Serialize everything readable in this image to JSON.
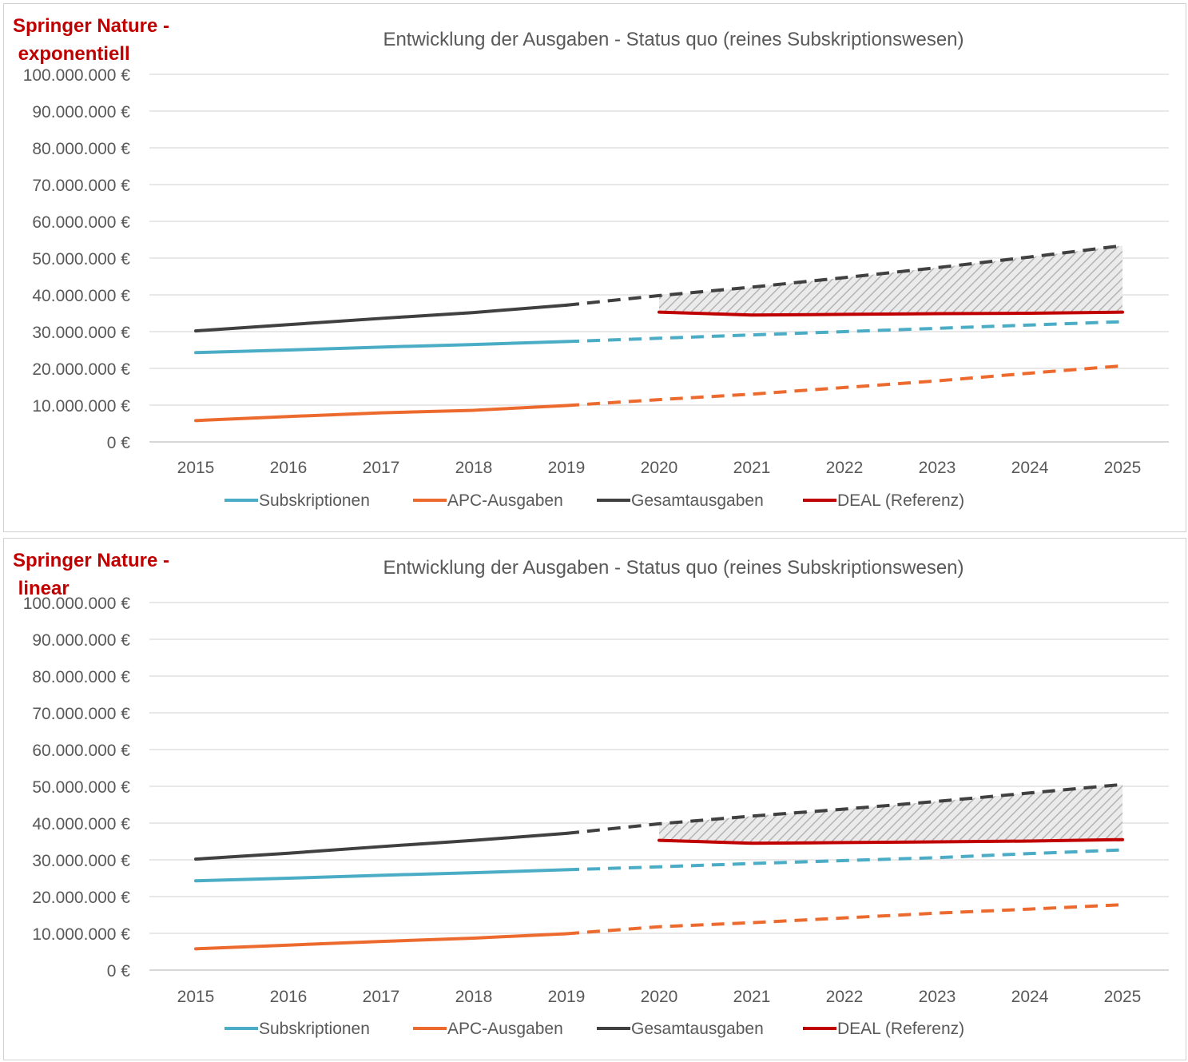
{
  "chart_data": [
    {
      "type": "line",
      "label": "Springer Nature -\n exponentiell",
      "title": "Entwicklung der Ausgaben - Status quo (reines Subskriptionswesen)",
      "categories": [
        "2015",
        "2016",
        "2017",
        "2018",
        "2019",
        "2020",
        "2021",
        "2022",
        "2023",
        "2024",
        "2025"
      ],
      "ylim": [
        0,
        100000000
      ],
      "yticks": [
        "0 €",
        "10.000.000 €",
        "20.000.000 €",
        "30.000.000 €",
        "40.000.000 €",
        "50.000.000 €",
        "60.000.000 €",
        "70.000.000 €",
        "80.000.000 €",
        "90.000.000 €",
        "100.000.000 €"
      ],
      "grid": true,
      "legend": "bottom",
      "projection_from": "2019",
      "series": [
        {
          "name": "Subskriptionen",
          "color": "#4bacc6",
          "values": [
            24300000,
            25000000,
            25800000,
            26500000,
            27300000,
            28200000,
            29100000,
            30000000,
            30900000,
            31800000,
            32700000
          ]
        },
        {
          "name": "APC-Ausgaben",
          "color": "#ed6a2f",
          "values": [
            5800000,
            6900000,
            7900000,
            8600000,
            9900000,
            11500000,
            13000000,
            14800000,
            16600000,
            18700000,
            20700000
          ]
        },
        {
          "name": "Gesamtausgaben",
          "color": "#404040",
          "values": [
            30200000,
            31900000,
            33600000,
            35200000,
            37200000,
            39800000,
            42100000,
            44700000,
            47400000,
            50300000,
            53400000
          ]
        },
        {
          "name": "DEAL (Referenz)",
          "color": "#c00000",
          "values": [
            null,
            null,
            null,
            null,
            null,
            35300000,
            34500000,
            34700000,
            34900000,
            35000000,
            35300000
          ]
        }
      ],
      "shaded_gap": {
        "between": [
          "Gesamtausgaben",
          "DEAL (Referenz)"
        ],
        "from": "2020",
        "to": "2025",
        "fill": "hatched grey"
      }
    },
    {
      "type": "line",
      "label": "Springer Nature -\n linear",
      "title": "Entwicklung der Ausgaben - Status quo (reines Subskriptionswesen)",
      "categories": [
        "2015",
        "2016",
        "2017",
        "2018",
        "2019",
        "2020",
        "2021",
        "2022",
        "2023",
        "2024",
        "2025"
      ],
      "ylim": [
        0,
        100000000
      ],
      "yticks": [
        "0 €",
        "10.000.000 €",
        "20.000.000 €",
        "30.000.000 €",
        "40.000.000 €",
        "50.000.000 €",
        "60.000.000 €",
        "70.000.000 €",
        "80.000.000 €",
        "90.000.000 €",
        "100.000.000 €"
      ],
      "grid": true,
      "legend": "bottom",
      "projection_from": "2019",
      "series": [
        {
          "name": "Subskriptionen",
          "color": "#4bacc6",
          "values": [
            24300000,
            25000000,
            25800000,
            26500000,
            27300000,
            28100000,
            29000000,
            29800000,
            30600000,
            31700000,
            32700000
          ]
        },
        {
          "name": "APC-Ausgaben",
          "color": "#ed6a2f",
          "values": [
            5800000,
            6800000,
            7800000,
            8700000,
            9900000,
            11800000,
            12900000,
            14200000,
            15500000,
            16600000,
            17800000
          ]
        },
        {
          "name": "Gesamtausgaben",
          "color": "#404040",
          "values": [
            30200000,
            31800000,
            33600000,
            35300000,
            37200000,
            39800000,
            41900000,
            43800000,
            45900000,
            48200000,
            50500000
          ]
        },
        {
          "name": "DEAL (Referenz)",
          "color": "#c00000",
          "values": [
            null,
            null,
            null,
            null,
            null,
            35300000,
            34500000,
            34700000,
            34900000,
            35100000,
            35500000
          ]
        }
      ],
      "shaded_gap": {
        "between": [
          "Gesamtausgaben",
          "DEAL (Referenz)"
        ],
        "from": "2020",
        "to": "2025",
        "fill": "hatched grey"
      }
    }
  ]
}
